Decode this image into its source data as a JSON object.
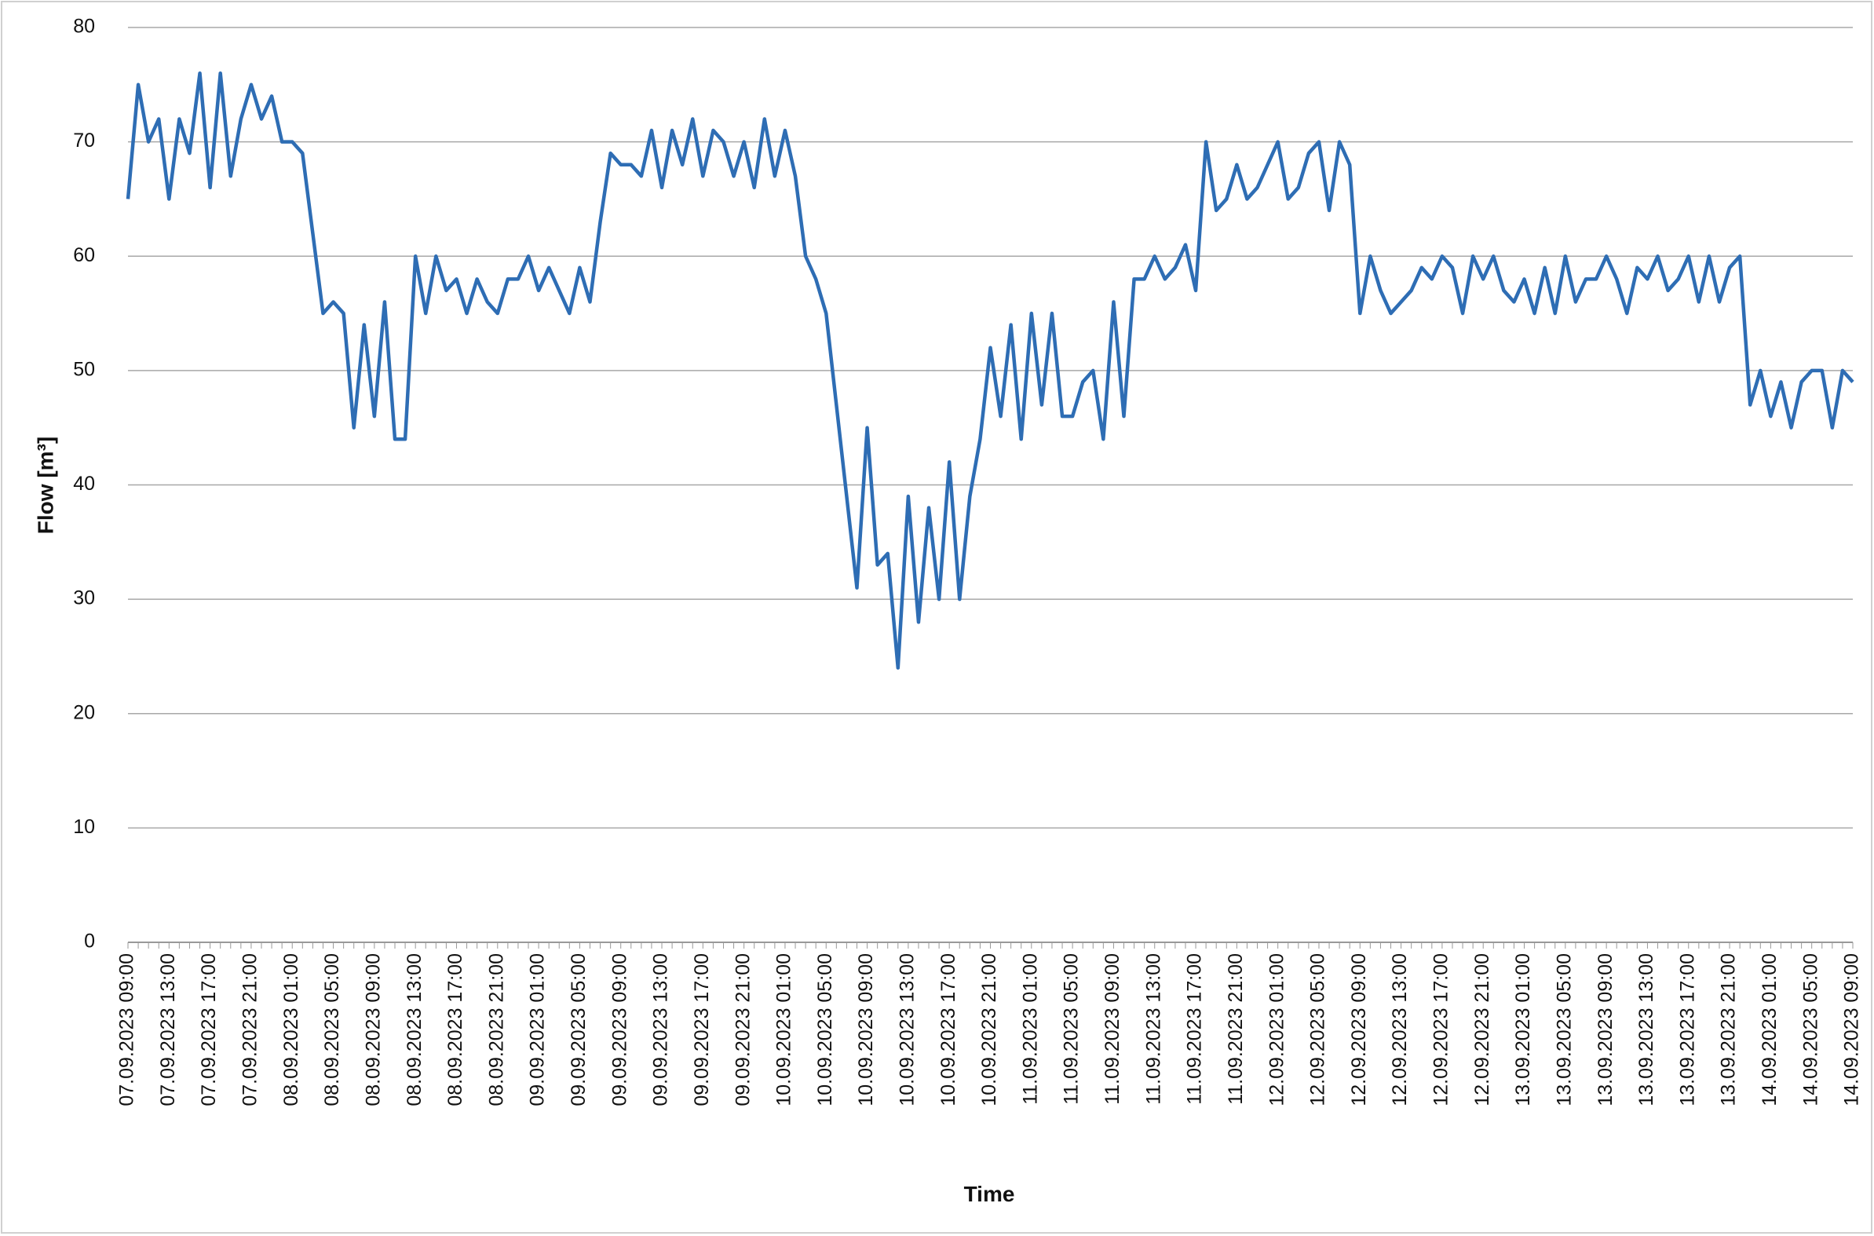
{
  "chart_data": {
    "type": "line",
    "x_label": "Time",
    "y_label": "Flow [m³]",
    "categories": [
      "07.09.2023 09:00",
      null,
      null,
      null,
      "07.09.2023 13:00",
      null,
      null,
      null,
      "07.09.2023 17:00",
      null,
      null,
      null,
      "07.09.2023 21:00",
      null,
      null,
      null,
      "08.09.2023 01:00",
      null,
      null,
      null,
      "08.09.2023 05:00",
      null,
      null,
      null,
      "08.09.2023 09:00",
      null,
      null,
      null,
      "08.09.2023 13:00",
      null,
      null,
      null,
      "08.09.2023 17:00",
      null,
      null,
      null,
      "08.09.2023 21:00",
      null,
      null,
      null,
      "09.09.2023 01:00",
      null,
      null,
      null,
      "09.09.2023 05:00",
      null,
      null,
      null,
      "09.09.2023 09:00",
      null,
      null,
      null,
      "09.09.2023 13:00",
      null,
      null,
      null,
      "09.09.2023 17:00",
      null,
      null,
      null,
      "09.09.2023 21:00",
      null,
      null,
      null,
      "10.09.2023 01:00",
      null,
      null,
      null,
      "10.09.2023 05:00",
      null,
      null,
      null,
      "10.09.2023 09:00",
      null,
      null,
      null,
      "10.09.2023 13:00",
      null,
      null,
      null,
      "10.09.2023 17:00",
      null,
      null,
      null,
      "10.09.2023 21:00",
      null,
      null,
      null,
      "11.09.2023 01:00",
      null,
      null,
      null,
      "11.09.2023 05:00",
      null,
      null,
      null,
      "11.09.2023 09:00",
      null,
      null,
      null,
      "11.09.2023 13:00",
      null,
      null,
      null,
      "11.09.2023 17:00",
      null,
      null,
      null,
      "11.09.2023 21:00",
      null,
      null,
      null,
      "12.09.2023 01:00",
      null,
      null,
      null,
      "12.09.2023 05:00",
      null,
      null,
      null,
      "12.09.2023 09:00",
      null,
      null,
      null,
      "12.09.2023 13:00",
      null,
      null,
      null,
      "12.09.2023 17:00",
      null,
      null,
      null,
      "12.09.2023 21:00",
      null,
      null,
      null,
      "13.09.2023 01:00",
      null,
      null,
      null,
      "13.09.2023 05:00",
      null,
      null,
      null,
      "13.09.2023 09:00",
      null,
      null,
      null,
      "13.09.2023 13:00",
      null,
      null,
      null,
      "13.09.2023 17:00",
      null,
      null,
      null,
      "13.09.2023 21:00",
      null,
      null,
      null,
      "14.09.2023 01:00",
      null,
      null,
      null,
      "14.09.2023 05:00",
      null,
      null,
      null,
      "14.09.2023 09:00"
    ],
    "series": [
      {
        "name": "Flow",
        "color": "#2e6db4",
        "values": [
          65,
          75,
          70,
          72,
          65,
          72,
          69,
          76,
          66,
          76,
          67,
          72,
          75,
          72,
          74,
          70,
          70,
          69,
          62,
          55,
          56,
          55,
          45,
          54,
          46,
          56,
          44,
          44,
          60,
          55,
          60,
          57,
          58,
          55,
          58,
          56,
          55,
          58,
          58,
          60,
          57,
          59,
          57,
          55,
          59,
          56,
          63,
          69,
          68,
          68,
          67,
          71,
          66,
          71,
          68,
          72,
          67,
          71,
          70,
          67,
          70,
          66,
          72,
          67,
          71,
          67,
          60,
          58,
          55,
          47,
          39,
          31,
          45,
          33,
          34,
          24,
          39,
          28,
          38,
          30,
          42,
          30,
          39,
          44,
          52,
          46,
          54,
          44,
          55,
          47,
          55,
          46,
          46,
          49,
          50,
          44,
          56,
          46,
          58,
          58,
          60,
          58,
          59,
          61,
          57,
          70,
          64,
          65,
          68,
          65,
          66,
          68,
          70,
          65,
          66,
          69,
          70,
          64,
          70,
          68,
          55,
          60,
          57,
          55,
          56,
          57,
          59,
          58,
          60,
          59,
          55,
          60,
          58,
          60,
          57,
          56,
          58,
          55,
          59,
          55,
          60,
          56,
          58,
          58,
          60,
          58,
          55,
          59,
          58,
          60,
          57,
          58,
          60,
          56,
          60,
          56,
          59,
          60,
          47,
          50,
          46,
          49,
          45,
          49,
          50,
          50,
          45,
          50,
          49
        ]
      }
    ],
    "ylim": [
      0,
      80
    ],
    "yticks": [
      0,
      10,
      20,
      30,
      40,
      50,
      60,
      70,
      80
    ],
    "grid": true
  }
}
